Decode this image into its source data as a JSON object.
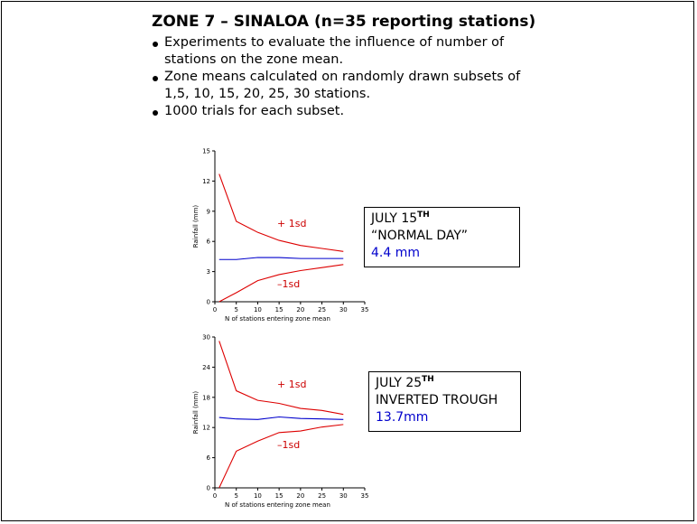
{
  "slide": {
    "title": "ZONE 7 – SINALOA (n=35 reporting stations)",
    "bullets": [
      "Experiments to evaluate the influence of number of stations on the zone mean.",
      "Zone means calculated on randomly drawn subsets of 1,5, 10, 15, 20, 25, 30 stations.",
      "1000 trials for each subset."
    ]
  },
  "colors": {
    "sd_line": "#dd0000",
    "mean_line": "#0000cc",
    "box_value": "#0000cc"
  },
  "chart_data": [
    {
      "type": "line",
      "xlabel": "N of stations entering zone mean",
      "ylabel": "Rainfall (mm)",
      "xlim": [
        0,
        35
      ],
      "ylim": [
        0,
        15
      ],
      "xticks": [
        "0",
        "5",
        "10",
        "15",
        "20",
        "25",
        "30",
        "35"
      ],
      "yticks": [
        "0",
        "3",
        "6",
        "9",
        "12",
        "15"
      ],
      "x": [
        1,
        5,
        10,
        15,
        20,
        25,
        30
      ],
      "series": [
        {
          "name": "+ 1sd",
          "values": [
            12.7,
            8.0,
            6.9,
            6.1,
            5.6,
            5.3,
            5.0
          ]
        },
        {
          "name": "",
          "values": [
            4.2,
            4.2,
            4.4,
            4.4,
            4.3,
            4.3,
            4.3
          ]
        },
        {
          "name": "–1sd",
          "values": [
            0.0,
            0.9,
            2.1,
            2.7,
            3.1,
            3.4,
            3.7
          ]
        }
      ],
      "annotations": [
        "+ 1sd",
        "–1sd"
      ],
      "grid": false,
      "box": {
        "line1": "JULY 15",
        "sup": "TH",
        "line2": "“NORMAL DAY”",
        "value": "4.4 mm"
      }
    },
    {
      "type": "line",
      "xlabel": "N of stations entering zone mean",
      "ylabel": "Rainfall (mm)",
      "xlim": [
        0,
        35
      ],
      "ylim": [
        0,
        30
      ],
      "xticks": [
        "0",
        "5",
        "10",
        "15",
        "20",
        "25",
        "30",
        "35"
      ],
      "yticks": [
        "0",
        "6",
        "12",
        "18",
        "24",
        "30"
      ],
      "x": [
        1,
        5,
        10,
        15,
        20,
        25,
        30
      ],
      "series": [
        {
          "name": "+ 1sd",
          "values": [
            29.2,
            19.3,
            17.4,
            16.8,
            15.8,
            15.4,
            14.6
          ]
        },
        {
          "name": "",
          "values": [
            14.0,
            13.7,
            13.6,
            14.1,
            13.8,
            13.7,
            13.6
          ]
        },
        {
          "name": "–1sd",
          "values": [
            0.0,
            7.3,
            9.3,
            11.0,
            11.3,
            12.1,
            12.6
          ]
        }
      ],
      "annotations": [
        "+ 1sd",
        "–1sd"
      ],
      "grid": false,
      "box": {
        "line1": "JULY 25",
        "sup": "TH",
        "line2": "INVERTED TROUGH",
        "value": "13.7mm"
      }
    }
  ]
}
